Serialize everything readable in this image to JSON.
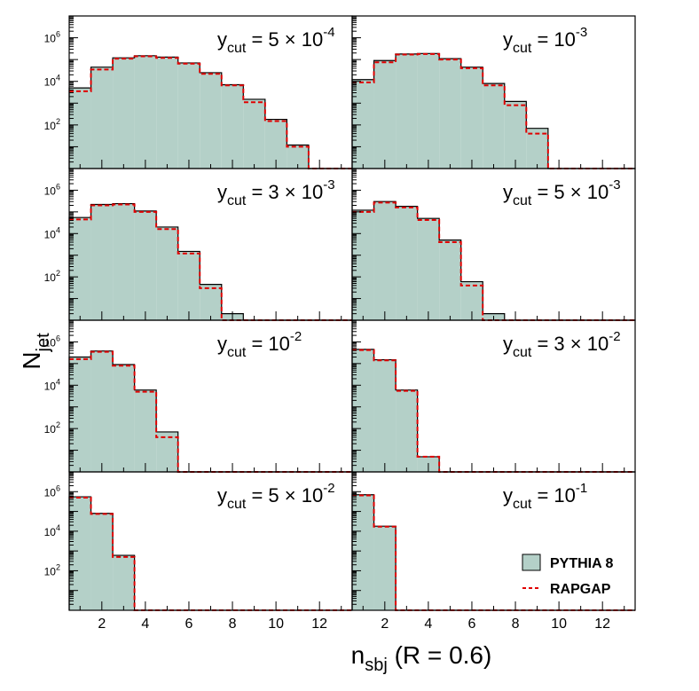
{
  "chart_data": {
    "type": "bar",
    "x_title": "n_sbj (R = 0.6)",
    "x_title_parts": {
      "main": "n",
      "sub": "sbj",
      "rest": " (R = 0.6)"
    },
    "y_title": "N_jet",
    "y_title_parts": {
      "main": "N",
      "sub": "jet"
    },
    "xlim": [
      0.5,
      13.5
    ],
    "ylim": [
      1,
      10000000
    ],
    "log_y": true,
    "x_ticks": [
      2,
      4,
      6,
      8,
      10,
      12
    ],
    "y_ticks": [
      {
        "value": 100,
        "base": "10",
        "exp": "2"
      },
      {
        "value": 10000,
        "base": "10",
        "exp": "4"
      },
      {
        "value": 1000000,
        "base": "10",
        "exp": "6"
      }
    ],
    "bin_edges": [
      0.5,
      1.5,
      2.5,
      3.5,
      4.5,
      5.5,
      6.5,
      7.5,
      8.5,
      9.5,
      10.5,
      11.5,
      12.5,
      13.5
    ],
    "series_names": [
      "PYTHIA 8",
      "RAPGAP"
    ],
    "legend": [
      {
        "label": "PYTHIA 8",
        "style": "filled"
      },
      {
        "label": "RAPGAP",
        "style": "dashed"
      }
    ],
    "colors": {
      "fill": "#b4d0c8",
      "edge": "#000000",
      "dashed": "#e00000"
    },
    "panels": [
      {
        "ycut": "5 × 10^-4",
        "ycut_parts": {
          "pre": "y",
          "sub": "cut",
          "mid": " = 5 × 10",
          "sup": "-4"
        },
        "pythia": [
          5000,
          45000,
          120000,
          150000,
          130000,
          70000,
          25000,
          7000,
          1500,
          180,
          12,
          0,
          0
        ],
        "rapgap": [
          3500,
          35000,
          110000,
          140000,
          120000,
          65000,
          22000,
          6500,
          1100,
          150,
          10,
          0,
          0
        ]
      },
      {
        "ycut": "10^-3",
        "ycut_parts": {
          "pre": "y",
          "sub": "cut",
          "mid": " = 10",
          "sup": "-3"
        },
        "pythia": [
          12000,
          90000,
          180000,
          190000,
          110000,
          45000,
          8000,
          1200,
          70,
          0,
          0,
          0,
          0
        ],
        "rapgap": [
          9000,
          75000,
          170000,
          180000,
          100000,
          40000,
          6500,
          800,
          40,
          0,
          0,
          0,
          0
        ]
      },
      {
        "ycut": "3 × 10^-3",
        "ycut_parts": {
          "pre": "y",
          "sub": "cut",
          "mid": " = 3 × 10",
          "sup": "-3"
        },
        "pythia": [
          55000,
          220000,
          240000,
          110000,
          20000,
          1500,
          45,
          2,
          0,
          0,
          0,
          0,
          0
        ],
        "rapgap": [
          45000,
          200000,
          220000,
          100000,
          16000,
          1200,
          30,
          0,
          0,
          0,
          0,
          0,
          0
        ]
      },
      {
        "ycut": "5 × 10^-3",
        "ycut_parts": {
          "pre": "y",
          "sub": "cut",
          "mid": " = 5 × 10",
          "sup": "-3"
        },
        "pythia": [
          120000,
          300000,
          180000,
          50000,
          5000,
          60,
          2,
          0,
          0,
          0,
          0,
          0,
          0
        ],
        "rapgap": [
          100000,
          270000,
          160000,
          42000,
          4000,
          40,
          0,
          0,
          0,
          0,
          0,
          0,
          0
        ]
      },
      {
        "ycut": "10^-2",
        "ycut_parts": {
          "pre": "y",
          "sub": "cut",
          "mid": " = 10",
          "sup": "-2"
        },
        "pythia": [
          200000,
          380000,
          90000,
          6000,
          70,
          0,
          0,
          0,
          0,
          0,
          0,
          0,
          0
        ],
        "rapgap": [
          160000,
          350000,
          80000,
          5000,
          40,
          0,
          0,
          0,
          0,
          0,
          0,
          0,
          0
        ]
      },
      {
        "ycut": "3 × 10^-2",
        "ycut_parts": {
          "pre": "y",
          "sub": "cut",
          "mid": " = 3 × 10",
          "sup": "-2"
        },
        "pythia": [
          450000,
          150000,
          6000,
          5,
          0,
          0,
          0,
          0,
          0,
          0,
          0,
          0,
          0
        ],
        "rapgap": [
          420000,
          140000,
          5500,
          5,
          0,
          0,
          0,
          0,
          0,
          0,
          0,
          0,
          0
        ]
      },
      {
        "ycut": "5 × 10^-2",
        "ycut_parts": {
          "pre": "y",
          "sub": "cut",
          "mid": " = 5 × 10",
          "sup": "-2"
        },
        "pythia": [
          550000,
          80000,
          600,
          0,
          0,
          0,
          0,
          0,
          0,
          0,
          0,
          0,
          0
        ],
        "rapgap": [
          500000,
          75000,
          500,
          0,
          0,
          0,
          0,
          0,
          0,
          0,
          0,
          0,
          0
        ]
      },
      {
        "ycut": "10^-1",
        "ycut_parts": {
          "pre": "y",
          "sub": "cut",
          "mid": " = 10",
          "sup": "-1"
        },
        "pythia": [
          700000,
          18000,
          0,
          0,
          0,
          0,
          0,
          0,
          0,
          0,
          0,
          0,
          0
        ],
        "rapgap": [
          650000,
          17000,
          0,
          0,
          0,
          0,
          0,
          0,
          0,
          0,
          0,
          0,
          0
        ]
      }
    ]
  }
}
